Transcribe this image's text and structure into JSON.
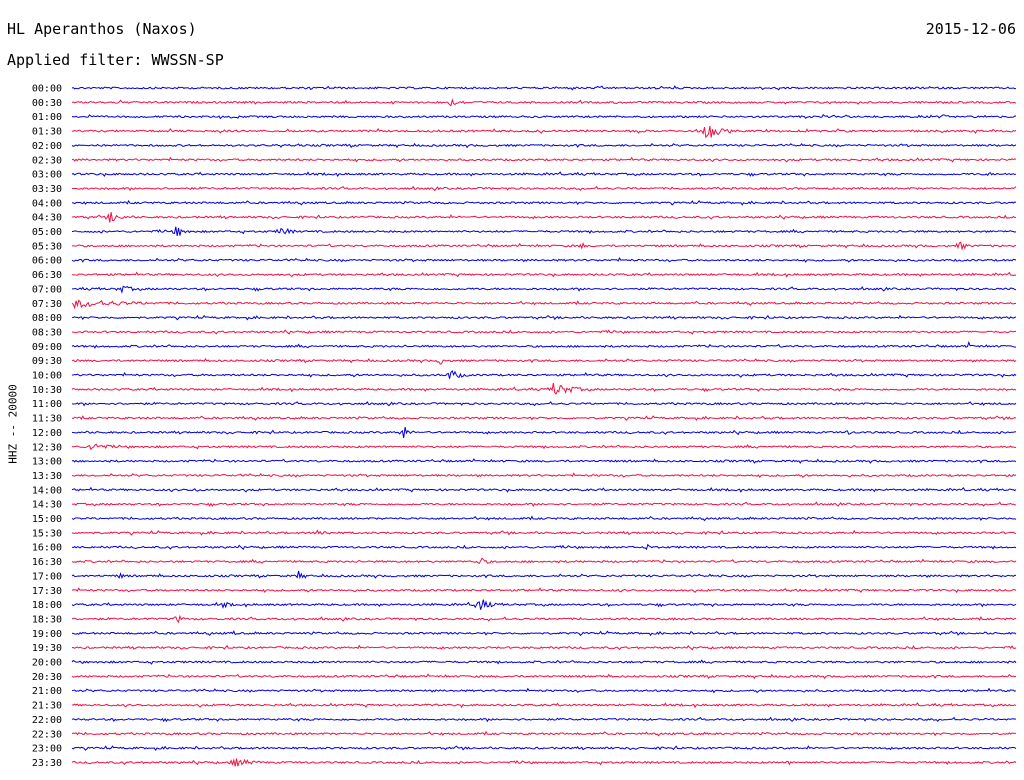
{
  "header": {
    "station": "HL Aperanthos (Naxos)",
    "filter": "Applied filter: WWSSN-SP",
    "date": "2015-12-06"
  },
  "colors": {
    "trace_a": "#0000dd",
    "trace_b": "#ee1144"
  },
  "chart_data": {
    "type": "line",
    "title": "HL Aperanthos (Naxos)",
    "subtitle": "Applied filter: WWSSN-SP",
    "ylabel": "HHZ -- 20000",
    "xlabel": "",
    "rows": [
      {
        "label": "00:00",
        "color": "blue",
        "events": []
      },
      {
        "label": "00:30",
        "color": "red",
        "events": [
          {
            "x": 0.4,
            "amp": 4,
            "dur": 0.04
          }
        ]
      },
      {
        "label": "01:00",
        "color": "blue",
        "events": [
          {
            "x": 0.92,
            "amp": 3,
            "dur": 0.02
          }
        ]
      },
      {
        "label": "01:30",
        "color": "red",
        "events": [
          {
            "x": 0.67,
            "amp": 12,
            "dur": 0.03
          }
        ]
      },
      {
        "label": "02:00",
        "color": "blue",
        "events": []
      },
      {
        "label": "02:30",
        "color": "red",
        "events": []
      },
      {
        "label": "03:00",
        "color": "blue",
        "events": [
          {
            "x": 0.97,
            "amp": 3,
            "dur": 0.01
          }
        ]
      },
      {
        "label": "03:30",
        "color": "red",
        "events": []
      },
      {
        "label": "04:00",
        "color": "blue",
        "events": []
      },
      {
        "label": "04:30",
        "color": "red",
        "events": [
          {
            "x": 0.04,
            "amp": 6,
            "dur": 0.03
          }
        ]
      },
      {
        "label": "05:00",
        "color": "blue",
        "events": [
          {
            "x": 0.11,
            "amp": 7,
            "dur": 0.02
          },
          {
            "x": 0.22,
            "amp": 5,
            "dur": 0.03
          }
        ]
      },
      {
        "label": "05:30",
        "color": "red",
        "events": [
          {
            "x": 0.54,
            "amp": 4,
            "dur": 0.01
          },
          {
            "x": 0.94,
            "amp": 5,
            "dur": 0.02
          }
        ]
      },
      {
        "label": "06:00",
        "color": "blue",
        "events": []
      },
      {
        "label": "06:30",
        "color": "red",
        "events": []
      },
      {
        "label": "07:00",
        "color": "blue",
        "events": [
          {
            "x": 0.05,
            "amp": 4,
            "dur": 0.04
          }
        ]
      },
      {
        "label": "07:30",
        "color": "red",
        "events": [
          {
            "x": 0.0,
            "amp": 5,
            "dur": 0.14
          }
        ]
      },
      {
        "label": "08:00",
        "color": "blue",
        "events": []
      },
      {
        "label": "08:30",
        "color": "red",
        "events": []
      },
      {
        "label": "09:00",
        "color": "blue",
        "events": [
          {
            "x": 0.95,
            "amp": 4,
            "dur": 0.01
          }
        ]
      },
      {
        "label": "09:30",
        "color": "red",
        "events": [
          {
            "x": 0.39,
            "amp": 4,
            "dur": 0.02
          }
        ]
      },
      {
        "label": "10:00",
        "color": "blue",
        "events": [
          {
            "x": 0.4,
            "amp": 6,
            "dur": 0.03
          }
        ]
      },
      {
        "label": "10:30",
        "color": "red",
        "events": [
          {
            "x": 0.51,
            "amp": 7,
            "dur": 0.05
          }
        ]
      },
      {
        "label": "11:00",
        "color": "blue",
        "events": []
      },
      {
        "label": "11:30",
        "color": "red",
        "events": []
      },
      {
        "label": "12:00",
        "color": "blue",
        "events": [
          {
            "x": 0.35,
            "amp": 9,
            "dur": 0.015
          },
          {
            "x": 0.82,
            "amp": 3,
            "dur": 0.02
          }
        ]
      },
      {
        "label": "12:30",
        "color": "red",
        "events": [
          {
            "x": 0.02,
            "amp": 5,
            "dur": 0.04
          }
        ]
      },
      {
        "label": "13:00",
        "color": "blue",
        "events": []
      },
      {
        "label": "13:30",
        "color": "red",
        "events": []
      },
      {
        "label": "14:00",
        "color": "blue",
        "events": [
          {
            "x": 0.13,
            "amp": 3,
            "dur": 0.01
          }
        ]
      },
      {
        "label": "14:30",
        "color": "red",
        "events": []
      },
      {
        "label": "15:00",
        "color": "blue",
        "events": []
      },
      {
        "label": "15:30",
        "color": "red",
        "events": [
          {
            "x": 0.26,
            "amp": 4,
            "dur": 0.03
          }
        ]
      },
      {
        "label": "16:00",
        "color": "blue",
        "events": [
          {
            "x": 0.61,
            "amp": 4,
            "dur": 0.015
          }
        ]
      },
      {
        "label": "16:30",
        "color": "red",
        "events": [
          {
            "x": 0.43,
            "amp": 6,
            "dur": 0.02
          }
        ]
      },
      {
        "label": "17:00",
        "color": "blue",
        "events": [
          {
            "x": 0.24,
            "amp": 5,
            "dur": 0.02
          },
          {
            "x": 0.05,
            "amp": 3,
            "dur": 0.02
          }
        ]
      },
      {
        "label": "17:30",
        "color": "red",
        "events": []
      },
      {
        "label": "18:00",
        "color": "blue",
        "events": [
          {
            "x": 0.43,
            "amp": 9,
            "dur": 0.025
          },
          {
            "x": 0.16,
            "amp": 3,
            "dur": 0.03
          }
        ]
      },
      {
        "label": "18:30",
        "color": "red",
        "events": [
          {
            "x": 0.11,
            "amp": 5,
            "dur": 0.02
          }
        ]
      },
      {
        "label": "19:00",
        "color": "blue",
        "events": [
          {
            "x": 0.17,
            "amp": 3,
            "dur": 0.01
          }
        ]
      },
      {
        "label": "19:30",
        "color": "red",
        "events": []
      },
      {
        "label": "20:00",
        "color": "blue",
        "events": []
      },
      {
        "label": "20:30",
        "color": "red",
        "events": []
      },
      {
        "label": "21:00",
        "color": "blue",
        "events": []
      },
      {
        "label": "21:30",
        "color": "red",
        "events": []
      },
      {
        "label": "22:00",
        "color": "blue",
        "events": []
      },
      {
        "label": "22:30",
        "color": "red",
        "events": []
      },
      {
        "label": "23:00",
        "color": "blue",
        "events": []
      },
      {
        "label": "23:30",
        "color": "red",
        "events": [
          {
            "x": 0.17,
            "amp": 5,
            "dur": 0.05
          },
          {
            "x": 0.76,
            "amp": 3,
            "dur": 0.01
          }
        ]
      }
    ]
  }
}
